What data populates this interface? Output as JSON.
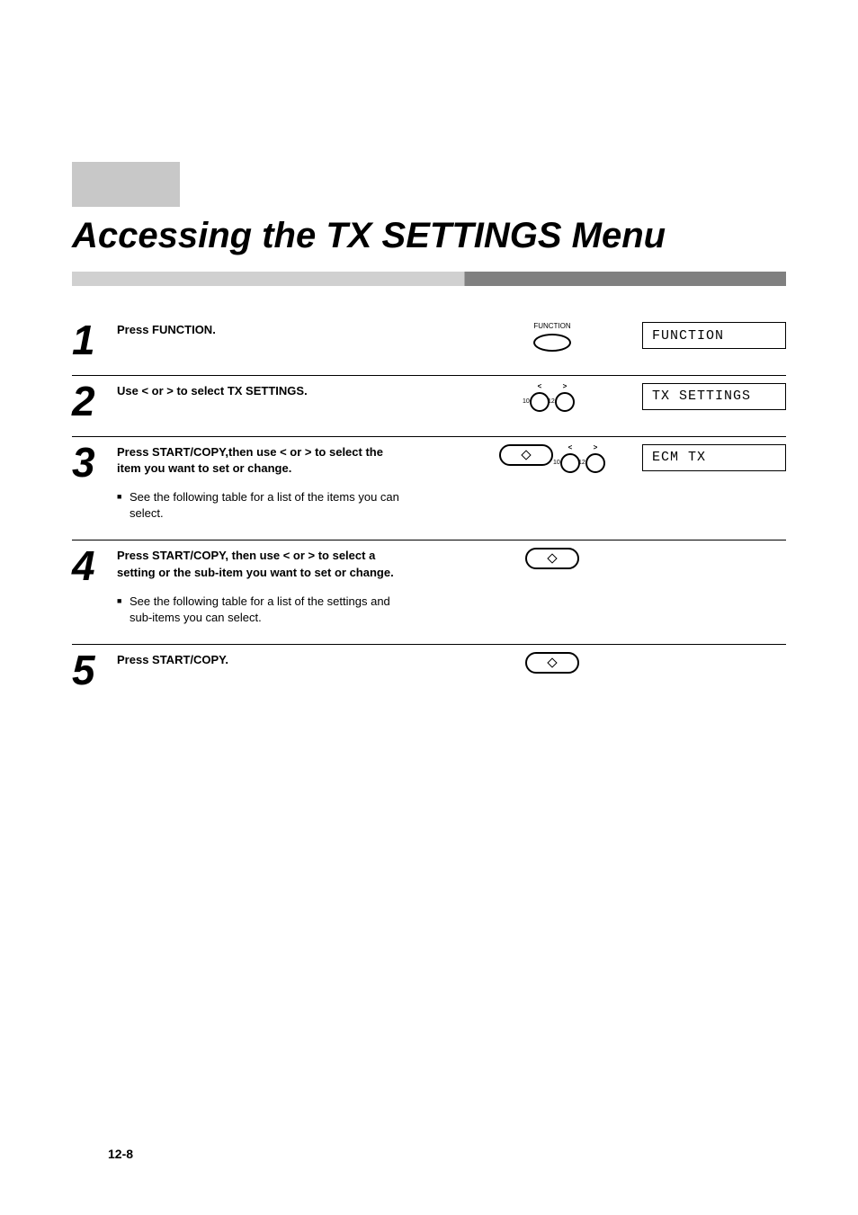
{
  "page": {
    "title": "Accessing the TX SETTINGS Menu",
    "page_number": "12-8",
    "background_color": "#ffffff",
    "header_block_color": "#c8c8c8",
    "title_bar_light": "#d0d0d0",
    "title_bar_dark": "#808080"
  },
  "steps": [
    {
      "num": "1",
      "instruction": "Press FUNCTION.",
      "note": null,
      "icon_type": "function",
      "icon_label": "FUNCTION",
      "display": "FUNCTION"
    },
    {
      "num": "2",
      "instruction": "Use < or > to select TX SETTINGS.",
      "note": null,
      "icon_type": "arrows",
      "left_num": "10",
      "right_num": "12",
      "display": "TX SETTINGS"
    },
    {
      "num": "3",
      "instruction": "Press START/COPY,then use < or > to select the item you want to set or change.",
      "note": "See the following table for a list of the items you can select.",
      "icon_type": "start_arrows",
      "left_num": "10",
      "right_num": "12",
      "display": "ECM TX"
    },
    {
      "num": "4",
      "instruction": "Press START/COPY, then use < or > to select a setting or the sub-item you want to set or change.",
      "note": "See the following table for a list of the settings and sub-items you can select.",
      "icon_type": "start",
      "display": null
    },
    {
      "num": "5",
      "instruction": "Press START/COPY.",
      "note": null,
      "icon_type": "start",
      "display": null
    }
  ],
  "typography": {
    "title_fontsize": 40,
    "step_num_fontsize": 46,
    "instruction_fontsize": 13,
    "note_fontsize": 13,
    "lcd_fontsize": 15,
    "page_num_fontsize": 14
  }
}
